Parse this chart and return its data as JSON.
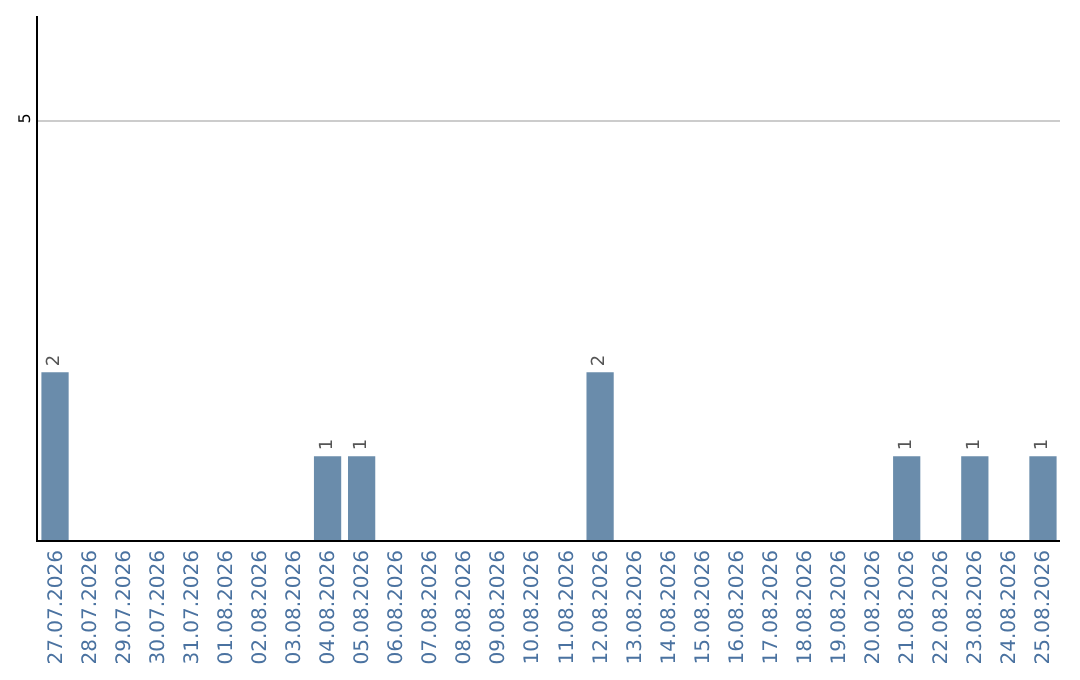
{
  "chart_data": {
    "type": "bar",
    "categories": [
      "27.07.2026",
      "28.07.2026",
      "29.07.2026",
      "30.07.2026",
      "31.07.2026",
      "01.08.2026",
      "02.08.2026",
      "03.08.2026",
      "04.08.2026",
      "05.08.2026",
      "06.08.2026",
      "07.08.2026",
      "08.08.2026",
      "09.08.2026",
      "10.08.2026",
      "11.08.2026",
      "12.08.2026",
      "13.08.2026",
      "14.08.2026",
      "15.08.2026",
      "16.08.2026",
      "17.08.2026",
      "18.08.2026",
      "19.08.2026",
      "20.08.2026",
      "21.08.2026",
      "22.08.2026",
      "23.08.2026",
      "24.08.2026",
      "25.08.2026"
    ],
    "values": [
      2,
      0,
      0,
      0,
      0,
      0,
      0,
      0,
      1,
      1,
      0,
      0,
      0,
      0,
      0,
      0,
      2,
      0,
      0,
      0,
      0,
      0,
      0,
      0,
      0,
      1,
      0,
      1,
      0,
      1
    ],
    "value_labels": [
      "2",
      null,
      null,
      null,
      null,
      null,
      null,
      null,
      "1",
      "1",
      null,
      null,
      null,
      null,
      null,
      null,
      "2",
      null,
      null,
      null,
      null,
      null,
      null,
      null,
      null,
      "1",
      null,
      "1",
      null,
      "1"
    ],
    "color": "#6a8cab",
    "ylim": [
      0,
      6.25
    ],
    "yticks": [
      5
    ],
    "grid": "y",
    "legend": false
  }
}
